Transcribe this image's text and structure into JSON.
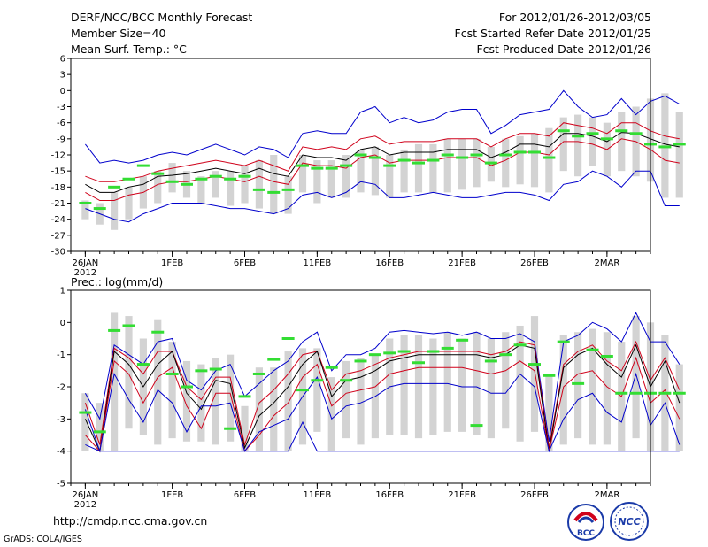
{
  "header": {
    "title": "DERF/NCC/BCC Monthly Forecast",
    "member_size": "Member Size=40",
    "variable": "Mean Surf. Temp.: °C",
    "forecast_period": "For 2012/01/26-2012/03/05",
    "started": "Fcst Started Refer Date 2012/01/25",
    "produced": "Fcst Produced Date 2012/01/26"
  },
  "footer": {
    "url": "http://cmdp.ncc.cma.gov.cn",
    "credit": "GrADS: COLA/IGES",
    "logo_bcc_text": "BCC",
    "logo_ncc_text": "NCC"
  },
  "colors": {
    "box": "#d3d3d3",
    "envelope": "#0000cc",
    "quartile": "#d0021b",
    "median": "#000000",
    "obs": "#33dd33"
  },
  "chart_data": [
    {
      "type": "line",
      "id": "temperature",
      "title": "Mean Surf. Temp.: °C",
      "xlabel": "",
      "ylabel": "",
      "ylim": [
        -30,
        6
      ],
      "yticks": [
        -30,
        -27,
        -24,
        -21,
        -18,
        -15,
        -12,
        -9,
        -6,
        -3,
        0,
        3,
        6
      ],
      "xlim": [
        0,
        40
      ],
      "xticks": [
        {
          "x": 0,
          "label": "26JAN"
        },
        {
          "x": 6,
          "label": "1FEB"
        },
        {
          "x": 11,
          "label": "6FEB"
        },
        {
          "x": 16,
          "label": "11FEB"
        },
        {
          "x": 21,
          "label": "16FEB"
        },
        {
          "x": 26,
          "label": "21FEB"
        },
        {
          "x": 31,
          "label": "26FEB"
        },
        {
          "x": 36,
          "label": "2MAR"
        }
      ],
      "year_label": "2012",
      "series": [
        {
          "name": "max",
          "values": [
            -10,
            -13.5,
            -13,
            -13.5,
            -13,
            -12,
            -11.5,
            -12,
            -11,
            -10,
            -11,
            -12,
            -10.5,
            -11,
            -12.5,
            -8,
            -7.5,
            -8,
            -8,
            -4,
            -3,
            -6,
            -5,
            -6,
            -5.5,
            -4,
            -3.5,
            -3.5,
            -8,
            -6.5,
            -4.5,
            -4,
            -3.5,
            0,
            -3,
            -5,
            -4.5,
            -1.5,
            -4.5,
            -2,
            -1,
            -2.5
          ]
        },
        {
          "name": "q3",
          "values": [
            -16,
            -17,
            -17,
            -16.5,
            -16,
            -15,
            -14.5,
            -14,
            -13.5,
            -13,
            -13.5,
            -14,
            -13,
            -14,
            -15,
            -10.5,
            -11,
            -10.5,
            -11,
            -9,
            -8.5,
            -10,
            -9.5,
            -9.5,
            -9.5,
            -9,
            -9,
            -9,
            -10.5,
            -9,
            -8,
            -8,
            -8.5,
            -6,
            -6.5,
            -7,
            -8,
            -6,
            -6,
            -7.5,
            -8.5,
            -9
          ]
        },
        {
          "name": "median",
          "values": [
            -17.5,
            -19,
            -19,
            -18,
            -17.5,
            -16,
            -15.8,
            -15.5,
            -15,
            -14.5,
            -15,
            -15.5,
            -14.5,
            -15.5,
            -16,
            -12,
            -12.5,
            -12.5,
            -13,
            -11,
            -10.5,
            -12,
            -11.5,
            -11.5,
            -11.5,
            -11,
            -11,
            -11,
            -12.5,
            -11.5,
            -10,
            -10,
            -10.5,
            -8,
            -8,
            -8.5,
            -9.5,
            -7.8,
            -8,
            -9,
            -10,
            -10.5
          ]
        },
        {
          "name": "q1",
          "values": [
            -19,
            -20.5,
            -20.5,
            -19.5,
            -19,
            -17.5,
            -17,
            -17,
            -16.5,
            -16,
            -16.5,
            -17,
            -16,
            -17,
            -17.5,
            -13.5,
            -14,
            -14,
            -14.5,
            -12.5,
            -12,
            -13.5,
            -13,
            -13,
            -13,
            -12.5,
            -12.5,
            -12.5,
            -14,
            -13,
            -11.5,
            -11.5,
            -12,
            -9.5,
            -9.5,
            -10,
            -11,
            -9,
            -9.5,
            -11,
            -13,
            -13.5
          ]
        },
        {
          "name": "min",
          "values": [
            -22,
            -23,
            -24,
            -24.5,
            -23,
            -22,
            -21,
            -21,
            -21,
            -21.5,
            -22,
            -22,
            -22.5,
            -23,
            -22,
            -19.5,
            -19,
            -20,
            -19,
            -17,
            -17.5,
            -20,
            -20,
            -19.5,
            -19,
            -19.5,
            -20,
            -20,
            -19.5,
            -19,
            -19,
            -19.5,
            -20.5,
            -17.5,
            -17,
            -15,
            -16,
            -18,
            -15,
            -15,
            -21.5,
            -21.5
          ]
        }
      ],
      "boxes": [
        [
          -24,
          -20.5
        ],
        [
          -25,
          -21
        ],
        [
          -26,
          -19
        ],
        [
          -24,
          -18
        ],
        [
          -22,
          -16
        ],
        [
          -21,
          -15
        ],
        [
          -19,
          -13.5
        ],
        [
          -20,
          -15
        ],
        [
          -21,
          -16
        ],
        [
          -20,
          -15
        ],
        [
          -21.5,
          -15
        ],
        [
          -21,
          -14
        ],
        [
          -22,
          -13
        ],
        [
          -23,
          -12
        ],
        [
          -23,
          -16
        ],
        [
          -19,
          -12
        ],
        [
          -21,
          -13
        ],
        [
          -20,
          -13
        ],
        [
          -20,
          -12
        ],
        [
          -19,
          -11
        ],
        [
          -19.5,
          -10.5
        ],
        [
          -20,
          -12
        ],
        [
          -19,
          -11
        ],
        [
          -19,
          -10
        ],
        [
          -19,
          -10
        ],
        [
          -19,
          -9
        ],
        [
          -18.5,
          -9
        ],
        [
          -18,
          -9
        ],
        [
          -17,
          -10.5
        ],
        [
          -18,
          -9
        ],
        [
          -17.5,
          -8.5
        ],
        [
          -18,
          -8
        ],
        [
          -19,
          -7
        ],
        [
          -15,
          -5
        ],
        [
          -16,
          -4.5
        ],
        [
          -14,
          -5
        ],
        [
          -16,
          -6
        ],
        [
          -15,
          -4
        ],
        [
          -16,
          -3
        ],
        [
          -17,
          -1.5
        ],
        [
          -20,
          -0.5
        ],
        [
          -20,
          -4
        ]
      ],
      "observed": [
        -21,
        -22,
        -18,
        -16.5,
        -14,
        -15.5,
        -17,
        -17.5,
        -16.5,
        -16,
        -16.5,
        -16,
        -18.5,
        -19,
        -18.5,
        -14,
        -14.5,
        -14.5,
        -14,
        -12,
        -12.5,
        -14,
        -13,
        -13.5,
        -13,
        -12,
        -12.5,
        -12,
        -13.5,
        -12,
        -11.5,
        -11.5,
        -12.5,
        -7.5,
        -8.5,
        -8,
        -9,
        -7.5,
        -8,
        -10,
        -10.5,
        -10
      ]
    },
    {
      "type": "line",
      "id": "precipitation",
      "title": "Prec.: log(mm/d)",
      "xlabel": "",
      "ylabel": "",
      "ylim": [
        -5,
        1
      ],
      "yticks": [
        -5,
        -4,
        -3,
        -2,
        -1,
        0,
        1
      ],
      "xlim": [
        0,
        40
      ],
      "xticks": [
        {
          "x": 0,
          "label": "26JAN"
        },
        {
          "x": 6,
          "label": "1FEB"
        },
        {
          "x": 11,
          "label": "6FEB"
        },
        {
          "x": 16,
          "label": "11FEB"
        },
        {
          "x": 21,
          "label": "16FEB"
        },
        {
          "x": 26,
          "label": "21FEB"
        },
        {
          "x": 31,
          "label": "26FEB"
        },
        {
          "x": 36,
          "label": "2MAR"
        }
      ],
      "year_label": "2012",
      "series": [
        {
          "name": "max",
          "values": [
            -2.2,
            -3,
            -0.7,
            -1,
            -1.3,
            -0.6,
            -0.5,
            -1.8,
            -2.1,
            -1.5,
            -1.3,
            -2.3,
            -1.9,
            -1.5,
            -1.2,
            -0.6,
            -0.3,
            -1.5,
            -1,
            -1,
            -0.8,
            -0.3,
            -0.25,
            -0.3,
            -0.35,
            -0.3,
            -0.4,
            -0.3,
            -0.5,
            -0.5,
            -0.35,
            -0.6,
            -3.7,
            -0.6,
            -0.4,
            0,
            -0.2,
            -0.6,
            0.3,
            -0.6,
            -0.6,
            -1.3
          ]
        },
        {
          "name": "q3",
          "values": [
            -2.5,
            -3.8,
            -0.8,
            -1.1,
            -1.6,
            -0.9,
            -0.9,
            -2,
            -2.4,
            -1.7,
            -1.7,
            -3.8,
            -2.5,
            -2.1,
            -1.6,
            -1,
            -0.9,
            -2.1,
            -1.6,
            -1.5,
            -1.3,
            -1.1,
            -1,
            -0.9,
            -0.9,
            -0.9,
            -0.9,
            -0.9,
            -1,
            -0.9,
            -0.6,
            -0.7,
            -3.9,
            -1.3,
            -0.9,
            -0.7,
            -1.2,
            -1.5,
            -0.6,
            -1.8,
            -1.1,
            -2.1
          ]
        },
        {
          "name": "median",
          "values": [
            -3,
            -4,
            -0.9,
            -1.3,
            -2,
            -1.3,
            -0.9,
            -2.2,
            -2.7,
            -1.8,
            -1.9,
            -3.9,
            -2.9,
            -2.5,
            -2,
            -1.3,
            -0.9,
            -2.3,
            -1.8,
            -1.7,
            -1.5,
            -1.2,
            -1.1,
            -1,
            -1,
            -1,
            -1,
            -1,
            -1.1,
            -1,
            -0.7,
            -0.8,
            -4,
            -1.4,
            -1,
            -0.8,
            -1.3,
            -1.7,
            -0.7,
            -2,
            -1.2,
            -2.5
          ]
        },
        {
          "name": "q1",
          "values": [
            -3.5,
            -4,
            -1.2,
            -1.6,
            -2.5,
            -1.7,
            -1.4,
            -2.6,
            -3.3,
            -2.2,
            -2.2,
            -4,
            -3.5,
            -2.9,
            -2.5,
            -1.7,
            -1.3,
            -2.6,
            -2.2,
            -2.1,
            -2,
            -1.6,
            -1.5,
            -1.4,
            -1.4,
            -1.4,
            -1.4,
            -1.5,
            -1.6,
            -1.5,
            -1.2,
            -1.5,
            -4,
            -2,
            -1.6,
            -1.5,
            -2,
            -2.3,
            -1.1,
            -2.5,
            -2.1,
            -3
          ]
        },
        {
          "name": "min",
          "values": [
            -3.8,
            -4,
            -1.6,
            -2.4,
            -3.1,
            -2.1,
            -2.5,
            -3.4,
            -2.6,
            -2.6,
            -2.5,
            -4,
            -3.4,
            -3.2,
            -3,
            -2.3,
            -1.7,
            -3,
            -2.6,
            -2.5,
            -2.3,
            -2,
            -1.9,
            -1.9,
            -1.9,
            -1.9,
            -2,
            -2,
            -2.2,
            -2.2,
            -1.6,
            -2,
            -4,
            -3,
            -2.4,
            -2.2,
            -2.8,
            -3.1,
            -1.6,
            -3.2,
            -2.5,
            -3.8
          ]
        },
        {
          "name": "lowest",
          "values": [
            -2.7,
            -4,
            -4,
            -4,
            -4,
            -4,
            -4,
            -4,
            -4,
            -4,
            -4,
            -4,
            -4,
            -4,
            -4,
            -3.1,
            -4,
            -4,
            -4,
            -4,
            -4,
            -4,
            -4,
            -4,
            -4,
            -4,
            -4,
            -4,
            -4,
            -4,
            -4,
            -4,
            -4,
            -4,
            -4,
            -4,
            -4,
            -4,
            -4,
            -4,
            -4,
            -4
          ]
        }
      ],
      "boxes": [
        [
          -4,
          -2.2
        ],
        [
          -4,
          -2.5
        ],
        [
          -4,
          0.3
        ],
        [
          -3.3,
          0.2
        ],
        [
          -3.5,
          -0.5
        ],
        [
          -3.8,
          0.1
        ],
        [
          -3.6,
          -0.6
        ],
        [
          -3.7,
          -1.2
        ],
        [
          -3.7,
          -1.3
        ],
        [
          -3.8,
          -1.1
        ],
        [
          -3.7,
          -1
        ],
        [
          -4,
          -2.6
        ],
        [
          -4,
          -1.4
        ],
        [
          -4,
          -1.4
        ],
        [
          -4,
          -0.9
        ],
        [
          -3.8,
          -0.8
        ],
        [
          -3.4,
          -0.8
        ],
        [
          -4,
          -1.7
        ],
        [
          -3.6,
          -1.2
        ],
        [
          -3.8,
          -1.1
        ],
        [
          -3.6,
          -1
        ],
        [
          -3.5,
          -0.5
        ],
        [
          -3.5,
          -0.4
        ],
        [
          -3.6,
          -0.4
        ],
        [
          -3.5,
          -0.5
        ],
        [
          -3.4,
          -0.3
        ],
        [
          -3.4,
          -0.5
        ],
        [
          -3.5,
          -0.3
        ],
        [
          -3.6,
          -0.5
        ],
        [
          -3.3,
          -0.3
        ],
        [
          -3.7,
          -0.1
        ],
        [
          -3.4,
          0.2
        ],
        [
          -4,
          -1.6
        ],
        [
          -3.8,
          -0.4
        ],
        [
          -3.6,
          -0.3
        ],
        [
          -3.8,
          -0.2
        ],
        [
          -3.8,
          -0.3
        ],
        [
          -4,
          -0.6
        ],
        [
          -3.6,
          0.2
        ],
        [
          -4,
          0
        ],
        [
          -4,
          -0.4
        ],
        [
          -4,
          -1.3
        ]
      ],
      "observed": [
        -2.8,
        -3.4,
        -0.25,
        -0.1,
        -1.3,
        -0.3,
        -1.6,
        -2,
        -1.5,
        -1.45,
        -3.3,
        -2.3,
        -1.6,
        -1.15,
        -0.5,
        -2.1,
        -1.8,
        -1.4,
        -1.8,
        -1.2,
        -1.0,
        -0.95,
        -0.9,
        -1.25,
        -0.9,
        -0.8,
        -0.55,
        -3.2,
        -1.2,
        -1.0,
        -0.7,
        -1.3,
        -1.65,
        -0.6,
        -1.9,
        -0.85,
        -1.05,
        -2.2,
        -2.2,
        -2.2,
        -2.2,
        -2.2
      ]
    }
  ]
}
